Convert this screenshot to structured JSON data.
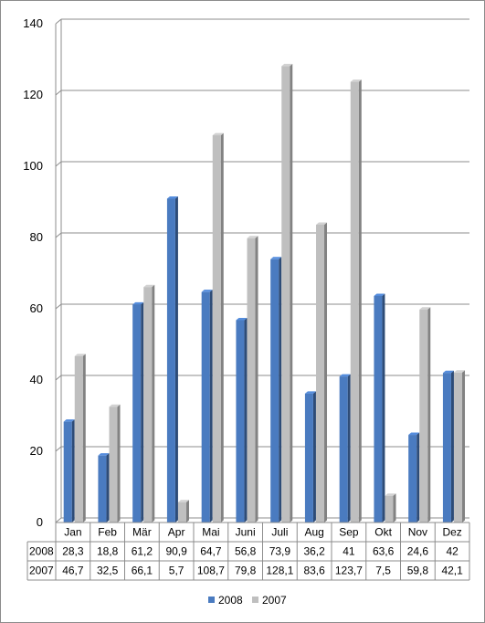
{
  "chart_data": {
    "type": "bar",
    "categories": [
      "Jan",
      "Feb",
      "Mär",
      "Apr",
      "Mai",
      "Juni",
      "Juli",
      "Aug",
      "Sep",
      "Okt",
      "Nov",
      "Dez"
    ],
    "series": [
      {
        "name": "2008",
        "color": "#4a7bc0",
        "values": [
          28.3,
          18.8,
          61.2,
          90.9,
          64.7,
          56.8,
          73.9,
          36.2,
          41,
          63.6,
          24.6,
          42
        ],
        "labels": [
          "28,3",
          "18,8",
          "61,2",
          "90,9",
          "64,7",
          "56,8",
          "73,9",
          "36,2",
          "41",
          "63,6",
          "24,6",
          "42"
        ]
      },
      {
        "name": "2007",
        "color": "#bfbfbf",
        "values": [
          46.7,
          32.5,
          66.1,
          5.7,
          108.7,
          79.8,
          128.1,
          83.6,
          123.7,
          7.5,
          59.8,
          42.1
        ],
        "labels": [
          "46,7",
          "32,5",
          "66,1",
          "5,7",
          "108,7",
          "79,8",
          "128,1",
          "83,6",
          "123,7",
          "7,5",
          "59,8",
          "42,1"
        ]
      }
    ],
    "ylim": [
      0,
      140
    ],
    "yticks": [
      0,
      20,
      40,
      60,
      80,
      100,
      120,
      140
    ],
    "grid": true,
    "data_table": true,
    "legend_position": "bottom",
    "title": "",
    "xlabel": "",
    "ylabel": ""
  }
}
